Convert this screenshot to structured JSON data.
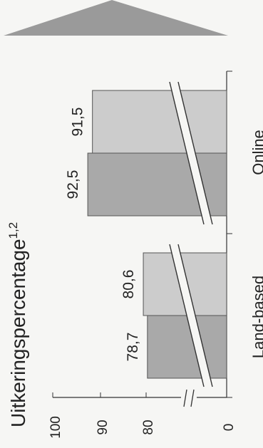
{
  "chart_data": {
    "type": "bar",
    "orientation": "rotated",
    "title": "Uitkeringspercentage",
    "title_superscript": "1,2",
    "categories": [
      "Land-based",
      "Online"
    ],
    "series": [
      {
        "values": [
          78.7,
          92.5
        ],
        "labels": [
          "78,7",
          "92,5"
        ],
        "color": "#a9a9a9"
      },
      {
        "values": [
          80.6,
          91.5
        ],
        "labels": [
          "80,6",
          "91,5"
        ],
        "color": "#cccccc"
      }
    ],
    "value_axis": {
      "ticks": [
        "0",
        "80",
        "90",
        "100"
      ],
      "ylim": [
        0,
        100
      ],
      "break_between": [
        0,
        80
      ]
    },
    "value_breaks_drawn_on_bars": true,
    "grid": false,
    "legend": "none"
  },
  "decor": {
    "arrow_color": "#9a9a9a"
  }
}
